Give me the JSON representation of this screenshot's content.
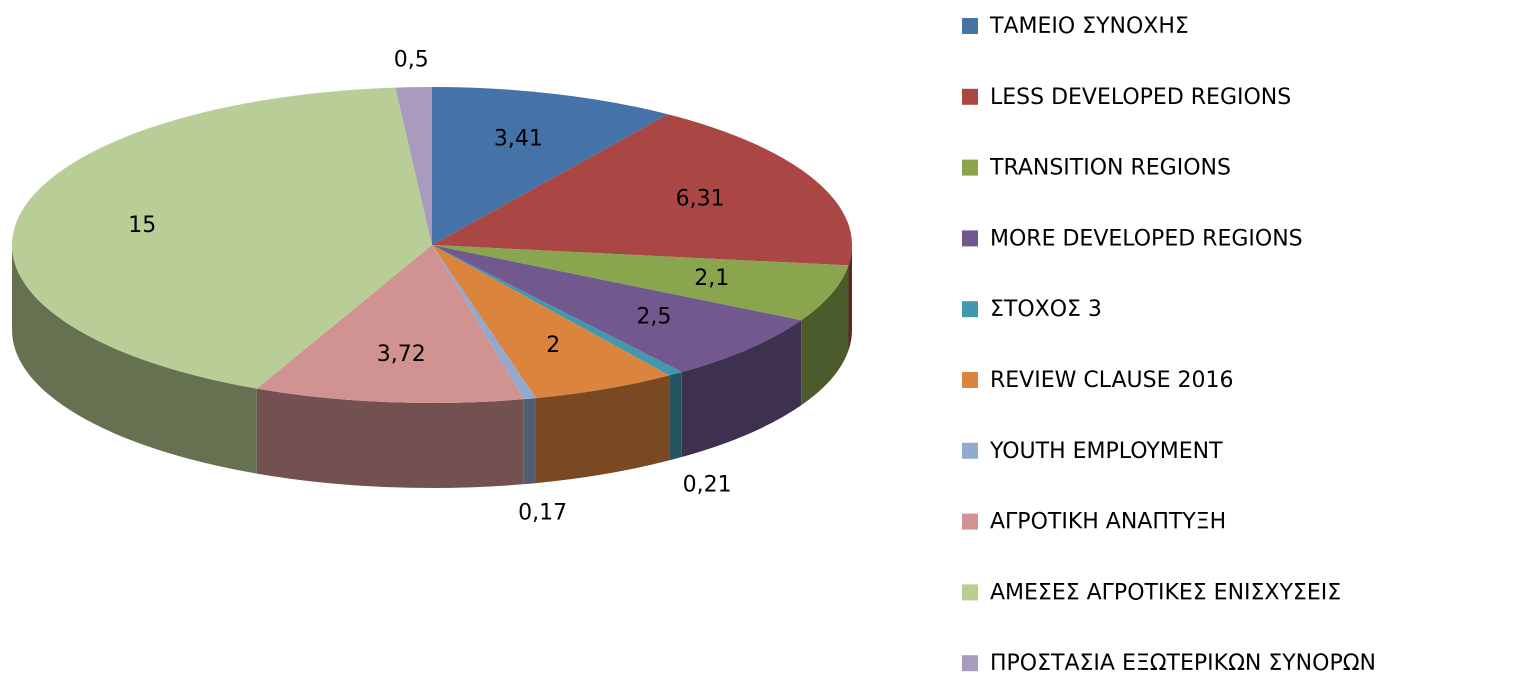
{
  "chart_data": {
    "type": "pie",
    "categories": [
      "ΤΑΜΕΙΟ ΣΥΝΟΧΗΣ",
      "LESS DEVELOPED REGIONS",
      "TRANSITION REGIONS",
      "MORE DEVELOPED REGIONS",
      "ΣΤΟΧΟΣ 3",
      "REVIEW CLAUSE 2016",
      "YOUTH EMPLOYMENT",
      "ΑΓΡΟΤΙΚΗ ΑΝΑΠΤΥΞΗ",
      "ΑΜΕΣΕΣ ΑΓΡΟΤΙΚΕΣ ΕΝΙΣΧΥΣΕΙΣ",
      "ΠΡΟΣΤΑΣΙΑ ΕΞΩΤΕΡΙΚΩΝ ΣΥΝΟΡΩΝ"
    ],
    "values": [
      3.41,
      6.31,
      2.1,
      2.5,
      0.21,
      2,
      0.17,
      3.72,
      15,
      0.5
    ],
    "value_labels": [
      "3,41",
      "6,31",
      "2,1",
      "2,5",
      "0,21",
      "2",
      "0,17",
      "3,72",
      "15",
      "0,5"
    ],
    "colors": [
      "#4572a7",
      "#aa4643",
      "#89a54e",
      "#71588f",
      "#4198af",
      "#db843d",
      "#93a9cf",
      "#d19392",
      "#b9cd96",
      "#a99bbd"
    ],
    "legend": "right"
  }
}
